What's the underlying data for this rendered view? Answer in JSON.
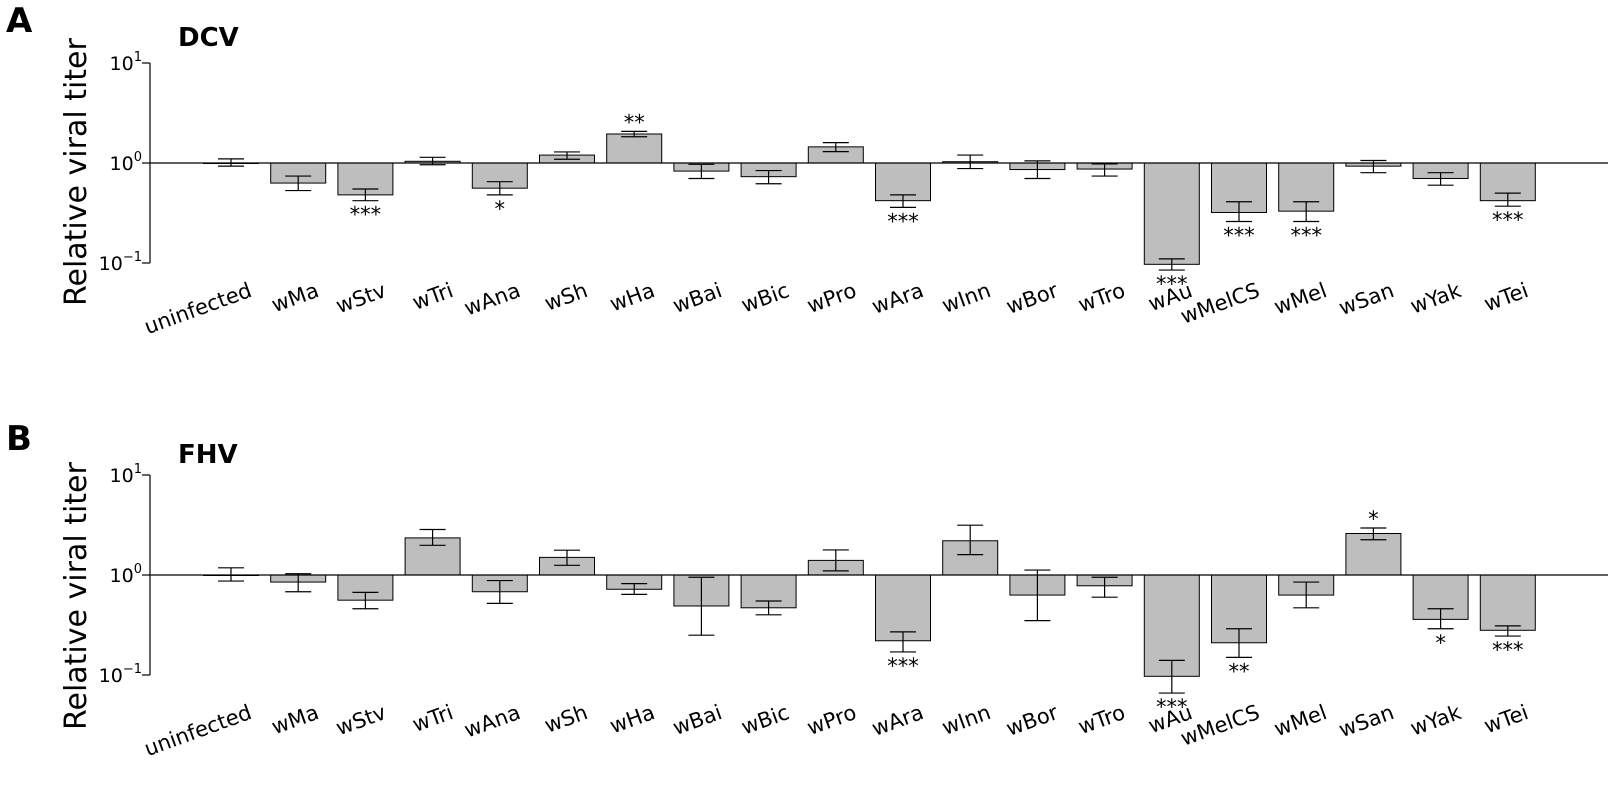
{
  "chart_data": [
    {
      "type": "bar",
      "panel": "A",
      "title": "DCV",
      "ylabel": "Relative viral titer",
      "yscale": "log",
      "ylim": [
        0.1,
        10
      ],
      "yticks": [
        {
          "base": "10",
          "exp": "1"
        },
        {
          "base": "10",
          "exp": "0"
        },
        {
          "base": "10",
          "exp": "−1"
        }
      ],
      "categories": [
        "uninfected",
        "wMa",
        "wStv",
        "wTri",
        "wAna",
        "wSh",
        "wHa",
        "wBai",
        "wBic",
        "wPro",
        "wAra",
        "wInn",
        "wBor",
        "wTro",
        "wAu",
        "wMelCS",
        "wMel",
        "wSan",
        "wYak",
        "wTei"
      ],
      "values": [
        1.0,
        0.63,
        0.48,
        1.04,
        0.56,
        1.2,
        1.95,
        0.83,
        0.73,
        1.45,
        0.42,
        1.03,
        0.86,
        0.87,
        0.097,
        0.32,
        0.33,
        0.93,
        0.7,
        0.42
      ],
      "err_low": [
        0.93,
        0.53,
        0.42,
        0.96,
        0.48,
        1.09,
        1.83,
        0.7,
        0.62,
        1.3,
        0.36,
        0.88,
        0.7,
        0.74,
        0.085,
        0.26,
        0.26,
        0.8,
        0.6,
        0.37
      ],
      "err_high": [
        1.1,
        0.74,
        0.55,
        1.14,
        0.65,
        1.29,
        2.07,
        0.97,
        0.84,
        1.6,
        0.48,
        1.2,
        1.05,
        0.98,
        0.11,
        0.41,
        0.41,
        1.06,
        0.8,
        0.5
      ],
      "significance": [
        "",
        "",
        "***",
        "",
        "*",
        "",
        "**",
        "",
        "",
        "",
        "***",
        "",
        "",
        "",
        "***",
        "***",
        "***",
        "",
        "",
        "***"
      ],
      "grid": false,
      "legend": "none"
    },
    {
      "type": "bar",
      "panel": "B",
      "title": "FHV",
      "ylabel": "Relative viral titer",
      "yscale": "log",
      "ylim": [
        0.1,
        10
      ],
      "yticks": [
        {
          "base": "10",
          "exp": "1"
        },
        {
          "base": "10",
          "exp": "0"
        },
        {
          "base": "10",
          "exp": "−1"
        }
      ],
      "categories": [
        "uninfected",
        "wMa",
        "wStv",
        "wTri",
        "wAna",
        "wSh",
        "wHa",
        "wBai",
        "wBic",
        "wPro",
        "wAra",
        "wInn",
        "wBor",
        "wTro",
        "wAu",
        "wMelCS",
        "wMel",
        "wSan",
        "wYak",
        "wTei"
      ],
      "values": [
        1.0,
        0.85,
        0.56,
        2.35,
        0.68,
        1.5,
        0.72,
        0.49,
        0.47,
        1.4,
        0.22,
        2.2,
        0.63,
        0.78,
        0.097,
        0.21,
        0.63,
        2.6,
        0.36,
        0.28
      ],
      "err_low": [
        0.87,
        0.68,
        0.46,
        1.98,
        0.52,
        1.25,
        0.64,
        0.25,
        0.4,
        1.1,
        0.17,
        1.6,
        0.35,
        0.6,
        0.066,
        0.15,
        0.47,
        2.25,
        0.29,
        0.245
      ],
      "err_high": [
        1.18,
        1.03,
        0.67,
        2.85,
        0.88,
        1.77,
        0.82,
        0.95,
        0.55,
        1.78,
        0.27,
        3.15,
        1.12,
        0.95,
        0.14,
        0.29,
        0.85,
        2.95,
        0.46,
        0.31
      ],
      "significance": [
        "",
        "",
        "",
        "",
        "",
        "",
        "",
        "",
        "",
        "",
        "***",
        "",
        "",
        "",
        "***",
        "**",
        "",
        "*",
        "*",
        "***"
      ],
      "grid": false,
      "legend": "none"
    }
  ]
}
